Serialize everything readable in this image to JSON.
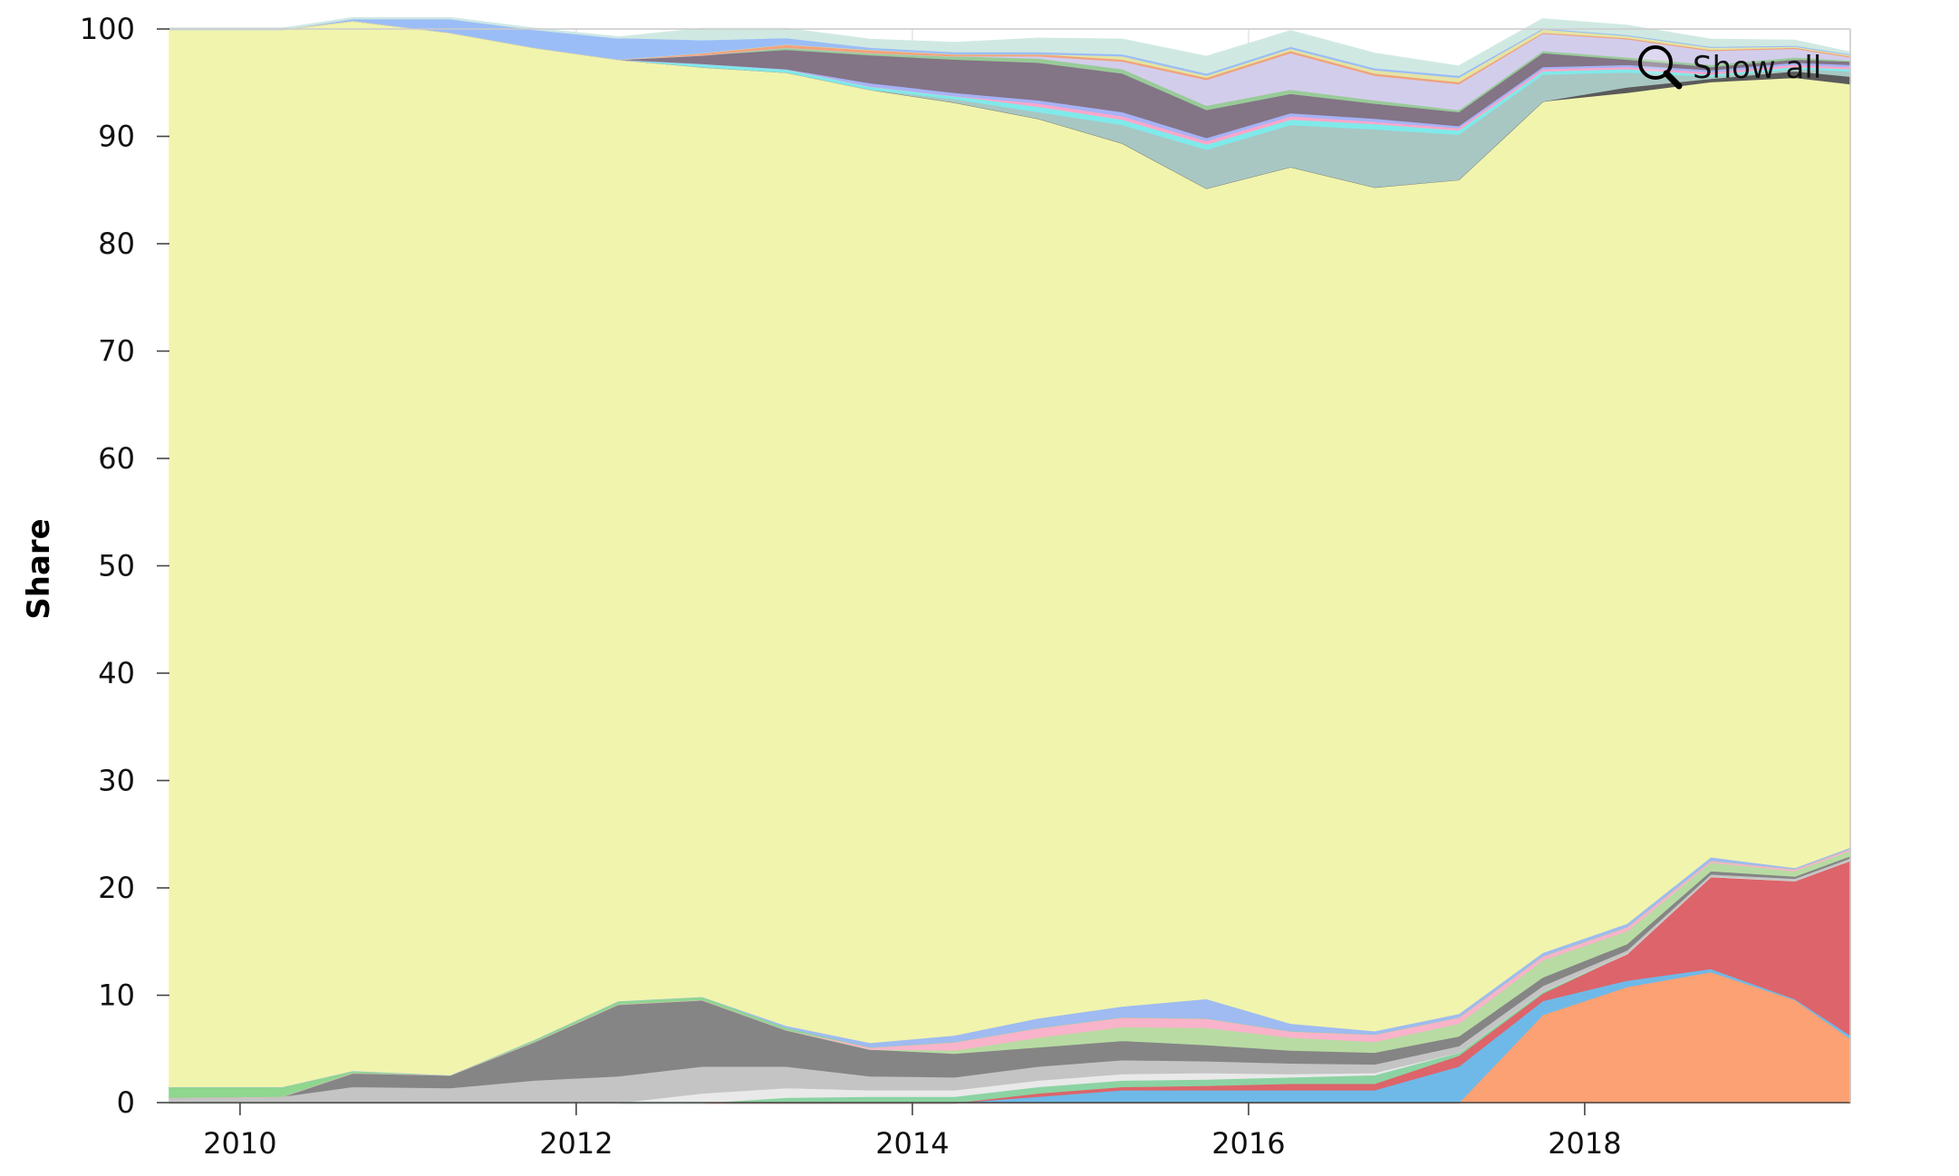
{
  "chart_data": {
    "type": "area",
    "stacked": true,
    "ylabel": "Share",
    "xlabel": "",
    "ylim": [
      0,
      100
    ],
    "xlim": [
      2009.58,
      2019.58
    ],
    "yticks": [
      0,
      10,
      20,
      30,
      40,
      50,
      60,
      70,
      80,
      90,
      100
    ],
    "xticks": [
      2010,
      2012,
      2014,
      2016,
      2018
    ],
    "grid": true,
    "legend": "none",
    "x": [
      2009.58,
      2010.25,
      2010.67,
      2011.25,
      2011.75,
      2012.25,
      2012.75,
      2013.25,
      2013.75,
      2014.25,
      2014.75,
      2015.25,
      2015.75,
      2016.25,
      2016.75,
      2017.25,
      2017.75,
      2018.25,
      2018.75,
      2019.25,
      2019.58
    ],
    "series": [
      {
        "color": "#fba173",
        "values": [
          0,
          0,
          0,
          0,
          0,
          0,
          0,
          0,
          0,
          0,
          0,
          0,
          0,
          0,
          0,
          0,
          8.2,
          10.8,
          12.2,
          9.6,
          6.0
        ]
      },
      {
        "color": "#6fb9e8",
        "values": [
          0,
          0,
          0,
          0,
          0,
          0,
          0,
          0,
          0,
          0,
          0.6,
          1.2,
          1.2,
          1.2,
          1.2,
          3.4,
          1.3,
          0.6,
          0.3,
          0.1,
          0.3
        ]
      },
      {
        "color": "#dd646a",
        "values": [
          0,
          0,
          0,
          0,
          0,
          0,
          0,
          0,
          0,
          0,
          0.3,
          0.3,
          0.4,
          0.6,
          0.6,
          1.0,
          0.7,
          2.5,
          8.6,
          11.0,
          16.3
        ]
      },
      {
        "color": "#8cd3a3",
        "values": [
          0,
          0,
          0,
          0,
          0,
          0,
          0,
          0.5,
          0.6,
          0.6,
          0.6,
          0.6,
          0.6,
          0.6,
          0.8,
          0.3,
          0.2,
          0,
          0,
          0,
          0
        ]
      },
      {
        "color": "#e9e9e9",
        "values": [
          0,
          0,
          0,
          0,
          0,
          0,
          0.9,
          0.9,
          0.6,
          0.6,
          0.6,
          0.6,
          0.6,
          0.3,
          0.2,
          0,
          0,
          0,
          0,
          0,
          0
        ]
      },
      {
        "color": "#c4c4c4",
        "values": [
          0.5,
          0.6,
          1.5,
          1.4,
          2.1,
          2.5,
          2.5,
          2.0,
          1.3,
          1.2,
          1.3,
          1.3,
          1.1,
          1.0,
          0.8,
          0.6,
          0.5,
          0.3,
          0.2,
          0.2,
          0.2
        ]
      },
      {
        "color": "#858585",
        "values": [
          0,
          0,
          1.3,
          1.2,
          3.6,
          6.7,
          6.2,
          3.4,
          2.5,
          2.2,
          1.8,
          1.8,
          1.5,
          1.2,
          1.1,
          0.9,
          0.8,
          0.6,
          0.3,
          0.2,
          0.2
        ]
      },
      {
        "color": "#b8dba3",
        "values": [
          0,
          0,
          0,
          0,
          0,
          0,
          0,
          0,
          0,
          0.3,
          0.9,
          1.3,
          1.6,
          1.2,
          1.0,
          1.2,
          1.6,
          1.2,
          0.8,
          0.5,
          0.5
        ]
      },
      {
        "color": "#f9b3ca",
        "values": [
          0,
          0,
          0,
          0,
          0,
          0,
          0,
          0,
          0.2,
          0.8,
          0.9,
          0.9,
          0.9,
          0.6,
          0.7,
          0.6,
          0.4,
          0.4,
          0.2,
          0.2,
          0.2
        ]
      },
      {
        "color": "#8fd68f",
        "values": [
          1.0,
          0.9,
          0.2,
          0,
          0.2,
          0.3,
          0.3,
          0.2,
          0,
          0,
          0,
          0,
          0,
          0,
          0,
          0,
          0,
          0,
          0,
          0,
          0
        ]
      },
      {
        "color": "#9fbbf1",
        "values": [
          0,
          0,
          0,
          0,
          0,
          0,
          0,
          0.2,
          0.4,
          0.6,
          0.9,
          1.0,
          1.8,
          0.7,
          0.3,
          0.3,
          0.3,
          0.3,
          0.3,
          0.1,
          0.1
        ]
      },
      {
        "color": "#f1f4ad",
        "values": [
          98.5,
          98.5,
          97.8,
          97.1,
          92.4,
          87.7,
          86.6,
          88.8,
          88.8,
          86.9,
          83.8,
          80.4,
          75.5,
          79.8,
          78.6,
          77.7,
          79.3,
          77.4,
          72.2,
          73.6,
          71.1
        ]
      },
      {
        "color": "#5a5a5a",
        "values": [
          0,
          0,
          0,
          0,
          0,
          0,
          0,
          0,
          0,
          0,
          0,
          0,
          0,
          0,
          0,
          0,
          0,
          0.5,
          0.3,
          0.6,
          0.7
        ]
      },
      {
        "color": "#a8c7c3",
        "values": [
          0,
          0,
          0,
          0,
          0,
          0,
          0,
          0,
          0,
          0.3,
          0.6,
          1.7,
          3.6,
          3.9,
          5.4,
          4.2,
          2.5,
          1.4,
          0.2,
          0.2,
          0.5
        ]
      },
      {
        "color": "#7feaea",
        "values": [
          0,
          0,
          0,
          0,
          0,
          0,
          0.3,
          0.3,
          0.3,
          0.3,
          0.5,
          0.5,
          0.5,
          0.5,
          0.5,
          0.4,
          0.3,
          0.3,
          0.2,
          0.2,
          0.2
        ]
      },
      {
        "color": "#ffa6c9",
        "values": [
          0,
          0,
          0,
          0,
          0,
          0,
          0,
          0,
          0,
          0,
          0.3,
          0.3,
          0.3,
          0.3,
          0.2,
          0.2,
          0.2,
          0.2,
          0.2,
          0.2,
          0.2
        ]
      },
      {
        "color": "#a7b3f6",
        "values": [
          0,
          0,
          0,
          0,
          0,
          0,
          0,
          0,
          0.3,
          0.3,
          0.3,
          0.4,
          0.3,
          0.3,
          0.3,
          0.2,
          0.2,
          0.2,
          0.2,
          0.2,
          0.2
        ]
      },
      {
        "color": "#837486",
        "values": [
          0,
          0,
          0,
          0,
          0,
          0,
          0.8,
          1.8,
          2.6,
          3.1,
          3.5,
          3.6,
          2.6,
          1.8,
          1.4,
          1.3,
          1.3,
          0.5,
          0.3,
          0.3,
          0.3
        ]
      },
      {
        "color": "#98cb98",
        "values": [
          0,
          0,
          0,
          0,
          0,
          0,
          0,
          0.2,
          0.2,
          0.3,
          0.4,
          0.4,
          0.4,
          0.4,
          0.3,
          0.2,
          0.2,
          0.2,
          0.2,
          0.2,
          0.1
        ]
      },
      {
        "color": "#d3cdec",
        "values": [
          0,
          0,
          0,
          0,
          0,
          0,
          0,
          0,
          0,
          0,
          0.2,
          0.7,
          2.4,
          3.4,
          2.3,
          2.4,
          1.6,
          1.7,
          1.3,
          0.8,
          0.3
        ]
      },
      {
        "color": "#f0a37c",
        "values": [
          0,
          0,
          0,
          0,
          0,
          0,
          0.2,
          0.3,
          0.3,
          0.2,
          0.2,
          0.2,
          0.2,
          0.2,
          0.2,
          0.2,
          0.1,
          0.1,
          0.1,
          0.1,
          0.1
        ]
      },
      {
        "color": "#e4e4a4",
        "values": [
          0,
          0,
          0,
          0,
          0,
          0,
          0,
          0,
          0,
          0,
          0,
          0.3,
          0.2,
          0.2,
          0.3,
          0.4,
          0.3,
          0.2,
          0.2,
          0.1,
          0.1
        ]
      },
      {
        "color": "#9bbdf7",
        "values": [
          0,
          0,
          0.2,
          1.3,
          1.7,
          2.0,
          1.2,
          0.6,
          0.2,
          0.2,
          0.2,
          0.2,
          0.2,
          0.2,
          0.2,
          0.2,
          0.1,
          0.1,
          0.1,
          0.1,
          0.1
        ]
      },
      {
        "color": "#cfe9e2",
        "values": [
          0,
          0,
          0,
          0,
          0,
          0,
          1.0,
          0.8,
          0.7,
          0.8,
          1.2,
          1.3,
          1.5,
          1.4,
          1.3,
          0.8,
          0.8,
          0.8,
          0.6,
          0.4,
          0.1
        ]
      }
    ]
  },
  "toolbar": {
    "show_all_label": "Show all",
    "magnifier_icon": "magnifier-icon"
  }
}
